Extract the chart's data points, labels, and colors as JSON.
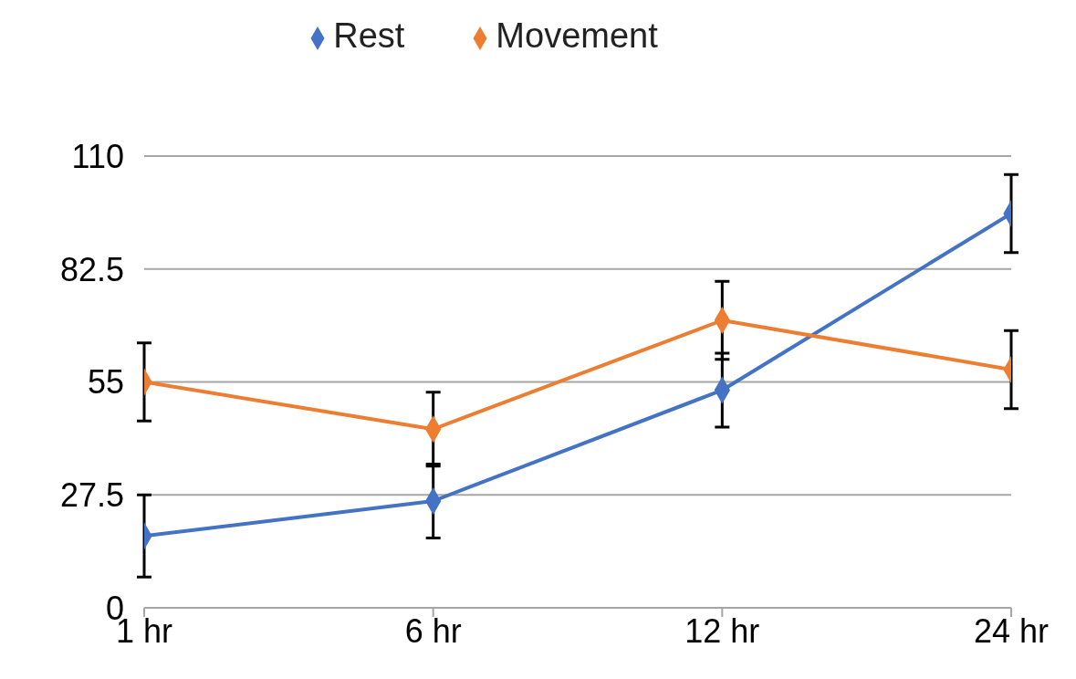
{
  "chart_data": {
    "type": "line",
    "categories": [
      "1 hr",
      "6 hr",
      "12 hr",
      "24 hr"
    ],
    "series": [
      {
        "name": "Rest",
        "color": "#4472c4",
        "values": [
          17.5,
          26,
          53,
          96
        ],
        "errors": [
          10,
          9,
          9,
          9.5
        ]
      },
      {
        "name": "Movement",
        "color": "#ed7d31",
        "values": [
          55,
          43.5,
          70,
          58
        ],
        "errors": [
          9.5,
          9,
          9.5,
          9.5
        ]
      }
    ],
    "ylim": [
      0,
      110
    ],
    "yticks": [
      0,
      27.5,
      55,
      82.5,
      110
    ],
    "grid": "y",
    "legend": "top",
    "marker": "diamond",
    "line_style": "solid"
  }
}
